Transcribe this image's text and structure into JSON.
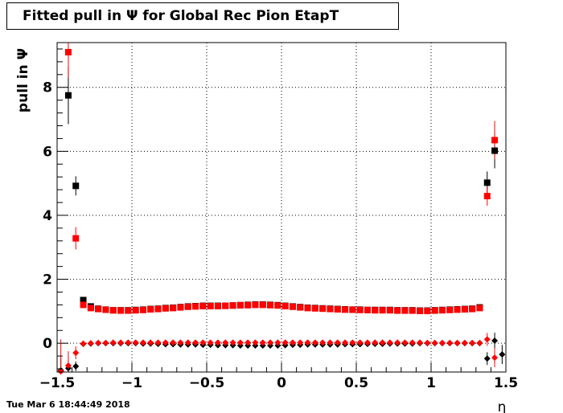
{
  "title": "Fitted pull in  Ψ  for Global Rec Pion EtapT",
  "timestamp": "Tue Mar  6 18:44:49 2018",
  "chart_data": {
    "type": "scatter",
    "title": "Fitted pull in  Ψ  for Global Rec Pion EtapT",
    "xlabel": "η",
    "ylabel": "pull in  Ψ",
    "xlim": [
      -1.5,
      1.5
    ],
    "ylim": [
      -0.9,
      9.4
    ],
    "grid": true,
    "xticks": [
      -1.5,
      -1,
      -0.5,
      0,
      0.5,
      1,
      1.5
    ],
    "xtick_labels": [
      "−1.5",
      "−1",
      "−0.5",
      "0",
      "0.5",
      "1",
      "1.5"
    ],
    "yticks": [
      0,
      2,
      4,
      6,
      8
    ],
    "ytick_labels": [
      "0",
      "2",
      "4",
      "6",
      "8"
    ],
    "colors": {
      "black": "#000000",
      "red": "#ff0000"
    },
    "series": [
      {
        "color": "#000000",
        "marker": "square",
        "x": [
          -1.425,
          -1.375,
          -1.325,
          -1.275,
          -1.225,
          -1.175,
          -1.125,
          -1.075,
          -1.025,
          -0.975,
          -0.925,
          -0.875,
          -0.825,
          -0.775,
          -0.725,
          -0.675,
          -0.625,
          -0.575,
          -0.525,
          -0.475,
          -0.425,
          -0.375,
          -0.325,
          -0.275,
          -0.225,
          -0.175,
          -0.125,
          -0.075,
          -0.025,
          0.025,
          0.075,
          0.125,
          0.175,
          0.225,
          0.275,
          0.325,
          0.375,
          0.425,
          0.475,
          0.525,
          0.575,
          0.625,
          0.675,
          0.725,
          0.775,
          0.825,
          0.875,
          0.925,
          0.975,
          1.025,
          1.075,
          1.125,
          1.175,
          1.225,
          1.275,
          1.325,
          1.375,
          1.425
        ],
        "y": [
          7.75,
          4.92,
          1.35,
          1.15,
          1.08,
          1.05,
          1.03,
          1.03,
          1.03,
          1.04,
          1.05,
          1.07,
          1.08,
          1.1,
          1.11,
          1.13,
          1.15,
          1.16,
          1.17,
          1.17,
          1.17,
          1.17,
          1.18,
          1.19,
          1.2,
          1.21,
          1.21,
          1.2,
          1.19,
          1.17,
          1.15,
          1.13,
          1.11,
          1.1,
          1.09,
          1.08,
          1.07,
          1.06,
          1.05,
          1.05,
          1.04,
          1.04,
          1.04,
          1.04,
          1.03,
          1.03,
          1.03,
          1.02,
          1.02,
          1.03,
          1.04,
          1.05,
          1.06,
          1.07,
          1.08,
          1.12,
          5.02,
          6.02
        ],
        "err": [
          0.9,
          0.3,
          0.06,
          0.03,
          0.03,
          0.03,
          0.03,
          0.03,
          0.03,
          0.03,
          0.03,
          0.03,
          0.03,
          0.03,
          0.03,
          0.03,
          0.03,
          0.03,
          0.03,
          0.03,
          0.03,
          0.03,
          0.03,
          0.03,
          0.03,
          0.03,
          0.03,
          0.03,
          0.03,
          0.03,
          0.03,
          0.03,
          0.03,
          0.03,
          0.03,
          0.03,
          0.03,
          0.03,
          0.03,
          0.03,
          0.03,
          0.03,
          0.03,
          0.03,
          0.03,
          0.03,
          0.03,
          0.03,
          0.03,
          0.03,
          0.03,
          0.03,
          0.03,
          0.03,
          0.03,
          0.05,
          0.35,
          0.55
        ]
      },
      {
        "color": "#ff0000",
        "marker": "square",
        "x": [
          -1.425,
          -1.375,
          -1.325,
          -1.275,
          -1.225,
          -1.175,
          -1.125,
          -1.075,
          -1.025,
          -0.975,
          -0.925,
          -0.875,
          -0.825,
          -0.775,
          -0.725,
          -0.675,
          -0.625,
          -0.575,
          -0.525,
          -0.475,
          -0.425,
          -0.375,
          -0.325,
          -0.275,
          -0.225,
          -0.175,
          -0.125,
          -0.075,
          -0.025,
          0.025,
          0.075,
          0.125,
          0.175,
          0.225,
          0.275,
          0.325,
          0.375,
          0.425,
          0.475,
          0.525,
          0.575,
          0.625,
          0.675,
          0.725,
          0.775,
          0.825,
          0.875,
          0.925,
          0.975,
          1.025,
          1.075,
          1.125,
          1.175,
          1.225,
          1.275,
          1.325,
          1.375,
          1.425
        ],
        "y": [
          9.1,
          3.28,
          1.2,
          1.1,
          1.07,
          1.05,
          1.03,
          1.02,
          1.02,
          1.03,
          1.04,
          1.06,
          1.07,
          1.09,
          1.1,
          1.12,
          1.14,
          1.15,
          1.16,
          1.16,
          1.16,
          1.17,
          1.18,
          1.19,
          1.19,
          1.2,
          1.2,
          1.19,
          1.18,
          1.16,
          1.14,
          1.12,
          1.1,
          1.09,
          1.08,
          1.07,
          1.06,
          1.05,
          1.05,
          1.04,
          1.04,
          1.03,
          1.03,
          1.03,
          1.02,
          1.02,
          1.02,
          1.01,
          1.01,
          1.02,
          1.03,
          1.04,
          1.05,
          1.06,
          1.07,
          1.1,
          4.6,
          6.35
        ],
        "err": [
          0.8,
          0.35,
          0.06,
          0.03,
          0.03,
          0.03,
          0.03,
          0.03,
          0.03,
          0.03,
          0.03,
          0.03,
          0.03,
          0.03,
          0.03,
          0.03,
          0.03,
          0.03,
          0.03,
          0.03,
          0.03,
          0.03,
          0.03,
          0.03,
          0.03,
          0.03,
          0.03,
          0.03,
          0.03,
          0.03,
          0.03,
          0.03,
          0.03,
          0.03,
          0.03,
          0.03,
          0.03,
          0.03,
          0.03,
          0.03,
          0.03,
          0.03,
          0.03,
          0.03,
          0.03,
          0.03,
          0.03,
          0.03,
          0.03,
          0.03,
          0.03,
          0.03,
          0.03,
          0.03,
          0.03,
          0.05,
          0.3,
          0.6
        ]
      },
      {
        "color": "#000000",
        "marker": "diamond",
        "x": [
          -1.475,
          -1.425,
          -1.375,
          -1.325,
          -1.275,
          -1.225,
          -1.175,
          -1.125,
          -1.075,
          -1.025,
          -0.975,
          -0.925,
          -0.875,
          -0.825,
          -0.775,
          -0.725,
          -0.675,
          -0.625,
          -0.575,
          -0.525,
          -0.475,
          -0.425,
          -0.375,
          -0.325,
          -0.275,
          -0.225,
          -0.175,
          -0.125,
          -0.075,
          -0.025,
          0.025,
          0.075,
          0.125,
          0.175,
          0.225,
          0.275,
          0.325,
          0.375,
          0.425,
          0.475,
          0.525,
          0.575,
          0.625,
          0.675,
          0.725,
          0.775,
          0.825,
          0.875,
          0.925,
          0.975,
          1.025,
          1.075,
          1.125,
          1.175,
          1.225,
          1.275,
          1.325,
          1.375,
          1.425,
          1.475
        ],
        "y": [
          -0.85,
          -0.78,
          -0.72,
          -0.02,
          -0.01,
          0.0,
          0.0,
          0.0,
          0.0,
          0.0,
          0.0,
          -0.01,
          -0.01,
          -0.02,
          -0.03,
          -0.03,
          -0.04,
          -0.04,
          -0.04,
          -0.05,
          -0.05,
          -0.06,
          -0.06,
          -0.06,
          -0.07,
          -0.07,
          -0.07,
          -0.07,
          -0.07,
          -0.07,
          -0.06,
          -0.05,
          -0.05,
          -0.04,
          -0.04,
          -0.04,
          -0.04,
          -0.04,
          -0.03,
          -0.03,
          -0.03,
          -0.02,
          -0.02,
          -0.02,
          -0.01,
          -0.01,
          -0.01,
          -0.01,
          0.0,
          0.0,
          0.0,
          0.0,
          0.0,
          0.0,
          0.0,
          0.0,
          0.0,
          -0.48,
          0.08,
          -0.35
        ],
        "err": [
          0.4,
          0.25,
          0.15,
          0.03,
          0.03,
          0.03,
          0.03,
          0.03,
          0.03,
          0.03,
          0.03,
          0.03,
          0.03,
          0.03,
          0.03,
          0.03,
          0.03,
          0.03,
          0.03,
          0.03,
          0.03,
          0.03,
          0.03,
          0.03,
          0.03,
          0.03,
          0.03,
          0.03,
          0.03,
          0.03,
          0.03,
          0.03,
          0.03,
          0.03,
          0.03,
          0.03,
          0.03,
          0.03,
          0.03,
          0.03,
          0.03,
          0.03,
          0.03,
          0.03,
          0.03,
          0.03,
          0.03,
          0.03,
          0.03,
          0.03,
          0.03,
          0.03,
          0.03,
          0.03,
          0.03,
          0.03,
          0.03,
          0.2,
          0.25,
          0.3
        ]
      },
      {
        "color": "#ff0000",
        "marker": "diamond",
        "x": [
          -1.475,
          -1.425,
          -1.375,
          -1.325,
          -1.275,
          -1.225,
          -1.175,
          -1.125,
          -1.075,
          -1.025,
          -0.975,
          -0.925,
          -0.875,
          -0.825,
          -0.775,
          -0.725,
          -0.675,
          -0.625,
          -0.575,
          -0.525,
          -0.475,
          -0.425,
          -0.375,
          -0.325,
          -0.275,
          -0.225,
          -0.175,
          -0.125,
          -0.075,
          -0.025,
          0.025,
          0.075,
          0.125,
          0.175,
          0.225,
          0.275,
          0.325,
          0.375,
          0.425,
          0.475,
          0.525,
          0.575,
          0.625,
          0.675,
          0.725,
          0.775,
          0.825,
          0.875,
          0.925,
          0.975,
          1.025,
          1.075,
          1.125,
          1.175,
          1.225,
          1.275,
          1.325,
          1.375,
          1.425
        ],
        "y": [
          -0.88,
          -0.7,
          -0.3,
          -0.01,
          0.0,
          0.01,
          0.01,
          0.02,
          0.02,
          0.02,
          0.02,
          0.02,
          0.02,
          0.02,
          0.02,
          0.02,
          0.02,
          0.02,
          0.02,
          0.02,
          0.02,
          0.02,
          0.02,
          0.02,
          0.02,
          0.02,
          0.02,
          0.02,
          0.02,
          0.02,
          0.02,
          0.02,
          0.02,
          0.02,
          0.02,
          0.02,
          0.02,
          0.02,
          0.02,
          0.02,
          0.02,
          0.02,
          0.02,
          0.02,
          0.02,
          0.02,
          0.02,
          0.02,
          0.02,
          0.01,
          0.01,
          0.01,
          0.01,
          0.01,
          0.01,
          0.01,
          0.01,
          0.12,
          -0.45
        ],
        "err": [
          1.0,
          0.45,
          0.2,
          0.03,
          0.03,
          0.03,
          0.03,
          0.03,
          0.03,
          0.03,
          0.03,
          0.03,
          0.03,
          0.03,
          0.03,
          0.03,
          0.03,
          0.03,
          0.03,
          0.03,
          0.03,
          0.03,
          0.03,
          0.03,
          0.03,
          0.03,
          0.03,
          0.03,
          0.03,
          0.03,
          0.03,
          0.03,
          0.03,
          0.03,
          0.03,
          0.03,
          0.03,
          0.03,
          0.03,
          0.03,
          0.03,
          0.03,
          0.03,
          0.03,
          0.03,
          0.03,
          0.03,
          0.03,
          0.03,
          0.03,
          0.03,
          0.03,
          0.03,
          0.03,
          0.03,
          0.03,
          0.03,
          0.2,
          0.3
        ]
      }
    ]
  }
}
